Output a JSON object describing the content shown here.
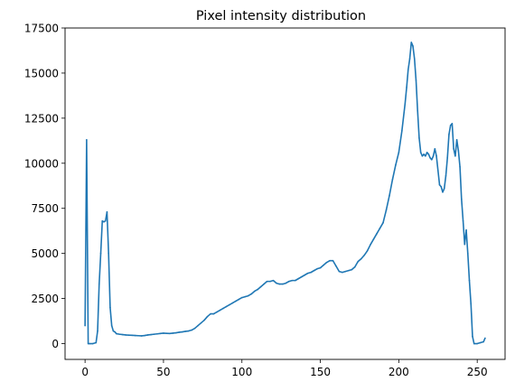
{
  "chart_data": {
    "type": "line",
    "title": "Pixel intensity distribution",
    "xlabel": "",
    "ylabel": "",
    "xlim": [
      -12.75,
      267.75
    ],
    "ylim": [
      -875,
      17500
    ],
    "xticks": [
      0,
      50,
      100,
      150,
      200,
      250
    ],
    "yticks": [
      0,
      2500,
      5000,
      7500,
      10000,
      12500,
      15000,
      17500
    ],
    "grid": false,
    "line_color": "#1f77b4",
    "series": [
      {
        "x": [
          0,
          1,
          2,
          3,
          5,
          7,
          8,
          9,
          10,
          11,
          12,
          13,
          14,
          15,
          16,
          17,
          18,
          19,
          20,
          22,
          24,
          26,
          28,
          30,
          32,
          34,
          36,
          38,
          40,
          42,
          44,
          46,
          48,
          50,
          52,
          54,
          56,
          58,
          60,
          62,
          64,
          66,
          68,
          70,
          72,
          74,
          76,
          78,
          80,
          82,
          84,
          86,
          88,
          90,
          92,
          94,
          96,
          98,
          100,
          102,
          104,
          106,
          108,
          110,
          112,
          114,
          116,
          118,
          120,
          122,
          124,
          126,
          128,
          130,
          132,
          134,
          136,
          138,
          140,
          142,
          144,
          146,
          148,
          150,
          152,
          154,
          156,
          158,
          160,
          162,
          164,
          166,
          168,
          170,
          172,
          174,
          176,
          178,
          180,
          182,
          184,
          186,
          188,
          190,
          192,
          194,
          196,
          198,
          200,
          202,
          204,
          205,
          206,
          207,
          208,
          209,
          210,
          211,
          212,
          213,
          214,
          215,
          216,
          217,
          218,
          219,
          220,
          221,
          222,
          223,
          224,
          225,
          226,
          227,
          228,
          229,
          230,
          231,
          232,
          233,
          234,
          235,
          236,
          237,
          238,
          239,
          240,
          241,
          242,
          243,
          244,
          245,
          246,
          247,
          248,
          250,
          252,
          254,
          255
        ],
        "y": [
          1000,
          11300,
          0,
          0,
          0,
          50,
          700,
          3300,
          5000,
          6800,
          6750,
          6800,
          7300,
          5000,
          2000,
          1000,
          700,
          650,
          550,
          520,
          500,
          480,
          470,
          460,
          450,
          440,
          430,
          450,
          480,
          500,
          520,
          540,
          560,
          580,
          570,
          560,
          580,
          600,
          630,
          650,
          680,
          700,
          750,
          850,
          1000,
          1150,
          1300,
          1500,
          1650,
          1650,
          1750,
          1850,
          1950,
          2050,
          2150,
          2250,
          2350,
          2450,
          2550,
          2600,
          2650,
          2750,
          2900,
          3000,
          3150,
          3300,
          3450,
          3450,
          3500,
          3350,
          3300,
          3300,
          3350,
          3450,
          3500,
          3500,
          3600,
          3700,
          3800,
          3900,
          3950,
          4050,
          4150,
          4200,
          4350,
          4500,
          4600,
          4600,
          4300,
          4000,
          3950,
          4000,
          4050,
          4100,
          4250,
          4550,
          4700,
          4900,
          5150,
          5500,
          5800,
          6100,
          6400,
          6700,
          7400,
          8200,
          9100,
          9900,
          10600,
          11800,
          13300,
          14200,
          15200,
          15800,
          16700,
          16500,
          15800,
          14600,
          12900,
          11400,
          10600,
          10400,
          10500,
          10400,
          10600,
          10500,
          10300,
          10200,
          10400,
          10800,
          10400,
          9600,
          8800,
          8700,
          8400,
          8600,
          9300,
          10300,
          11600,
          12100,
          12200,
          10800,
          10400,
          11300,
          10700,
          9800,
          8000,
          6800,
          5500,
          6300,
          5000,
          3500,
          2200,
          400,
          0,
          0,
          50,
          100,
          300
        ]
      }
    ]
  }
}
